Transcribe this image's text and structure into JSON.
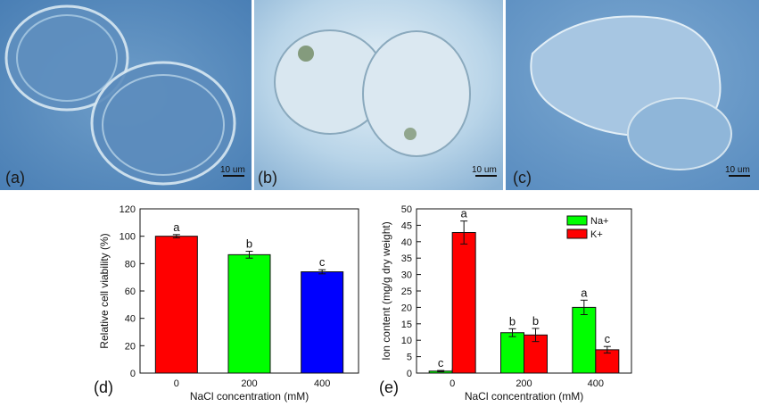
{
  "micrographs": [
    {
      "label": "(a)",
      "scale_bar": "10 um"
    },
    {
      "label": "(b)",
      "scale_bar": "10 um"
    },
    {
      "label": "(c)",
      "scale_bar": "10 um"
    }
  ],
  "chart_data": [
    {
      "panel_label": "(d)",
      "type": "bar",
      "categories": [
        "0",
        "200",
        "400"
      ],
      "values": [
        100,
        86.5,
        74
      ],
      "errors": [
        1.2,
        2.5,
        1.5
      ],
      "colors": [
        "#ff0000",
        "#00ff00",
        "#0000ff"
      ],
      "significance": [
        "a",
        "b",
        "c"
      ],
      "xlabel": "NaCl concentration (mM)",
      "ylabel": "Relative cell viability (%)",
      "ylim": [
        0,
        120
      ],
      "yticks": [
        "0",
        "20",
        "40",
        "60",
        "80",
        "100",
        "120"
      ],
      "grid": false
    },
    {
      "panel_label": "(e)",
      "type": "bar",
      "categories": [
        "0",
        "200",
        "400"
      ],
      "series": [
        {
          "name": "Na+",
          "color": "#00ff00",
          "values": [
            0.6,
            12.3,
            20
          ],
          "errors": [
            0.2,
            1.2,
            2.2
          ],
          "significance": [
            "c",
            "b",
            "a"
          ]
        },
        {
          "name": "K+",
          "color": "#ff0000",
          "values": [
            42.8,
            11.6,
            7.1
          ],
          "errors": [
            3.5,
            2.0,
            1.0
          ],
          "significance": [
            "a",
            "b",
            "c"
          ]
        }
      ],
      "xlabel": "NaCl concentration (mM)",
      "ylabel": "Ion content (mg/g dry weight)",
      "ylim": [
        0,
        50
      ],
      "yticks": [
        "0",
        "5",
        "10",
        "15",
        "20",
        "25",
        "30",
        "35",
        "40",
        "45",
        "50"
      ],
      "legend_position": "top-right",
      "grid": false
    }
  ]
}
